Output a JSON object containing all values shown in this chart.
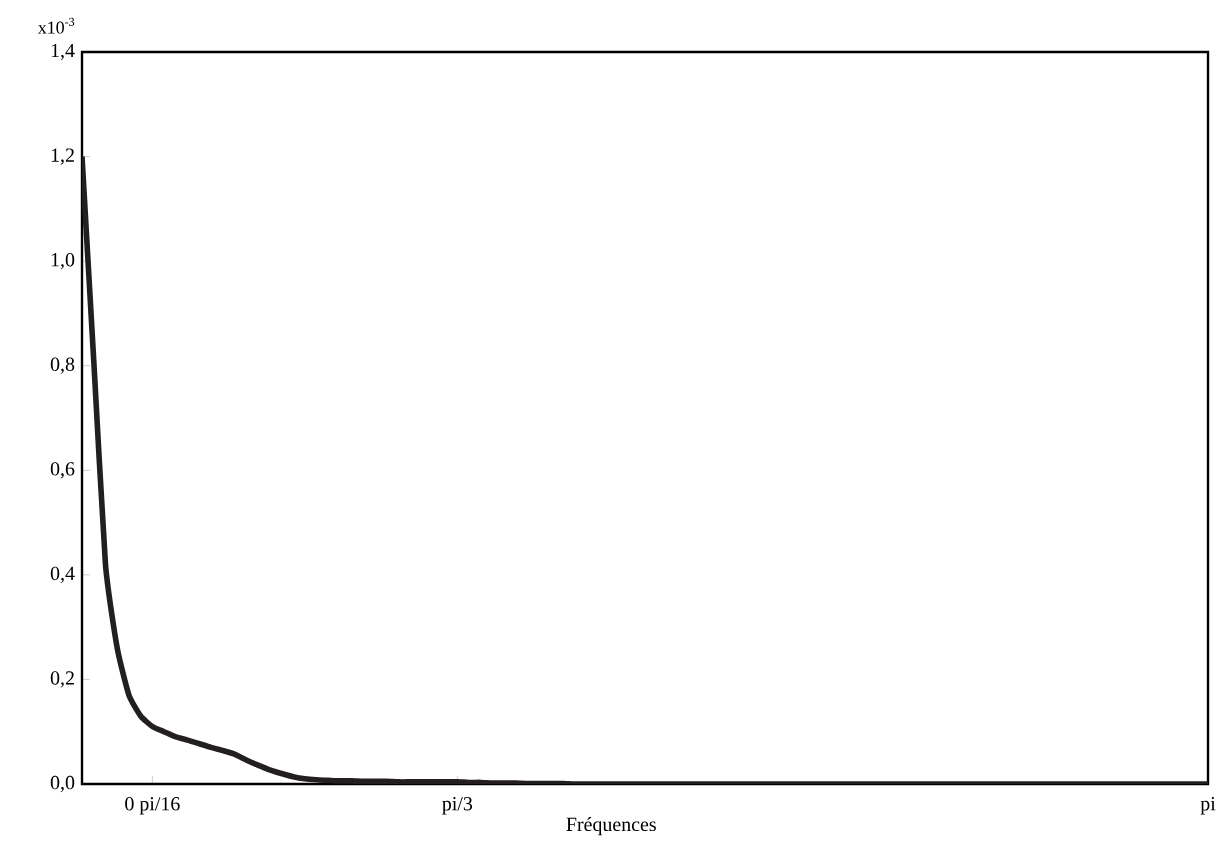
{
  "chart_data": {
    "type": "line",
    "xlabel": "Fréquences",
    "annotations": [
      "x10$^{-3}$"
    ],
    "categories": [
      null,
      null,
      null,
      null,
      null,
      null,
      "0 pi/16",
      null,
      null,
      null,
      null,
      null,
      null,
      null,
      null,
      null,
      null,
      null,
      null,
      null,
      null,
      null,
      null,
      null,
      null,
      null,
      null,
      null,
      null,
      null,
      null,
      null,
      "pi/3",
      null,
      null,
      null,
      null,
      null,
      null,
      null,
      null,
      null,
      null,
      null,
      null,
      null,
      null,
      null,
      null,
      null,
      null,
      null,
      null,
      null,
      null,
      null,
      null,
      null,
      null,
      null,
      null,
      null,
      null,
      null,
      null,
      null,
      null,
      null,
      null,
      null,
      null,
      null,
      null,
      null,
      null,
      null,
      null,
      null,
      null,
      null,
      null,
      null,
      null,
      null,
      null,
      null,
      null,
      null,
      null,
      null,
      null,
      null,
      null,
      null,
      null,
      null,
      "pi"
    ],
    "values": [
      1.2,
      0.81,
      0.42,
      0.26,
      0.17,
      0.13,
      0.11,
      0.1,
      0.09,
      0.084,
      0.077,
      0.07,
      0.064,
      0.057,
      0.046,
      0.036,
      0.027,
      0.02,
      0.014,
      0.01,
      0.008,
      0.007,
      0.006,
      0.006,
      0.005,
      0.005,
      0.005,
      0.004,
      0.004,
      0.004,
      0.004,
      0.004,
      0.004,
      0.003,
      0.003,
      0.002,
      0.002,
      0.002,
      0.001,
      0.001,
      0.001,
      0.001,
      0,
      0,
      0,
      0,
      0,
      0,
      0,
      0,
      0,
      0,
      0,
      0,
      0,
      0,
      0,
      0,
      0,
      0,
      0,
      0,
      0,
      0,
      0,
      0,
      0,
      0,
      0,
      0,
      0,
      0,
      0,
      0,
      0,
      0,
      0,
      0,
      0,
      0,
      0,
      0,
      0,
      0,
      0,
      0,
      0,
      0,
      0,
      0,
      0,
      0,
      0,
      0,
      0,
      0,
      0
    ],
    "color": "#231f20",
    "ylim": [
      0,
      1.4
    ],
    "yticks": [
      {
        "value": 0,
        "label": "0,0"
      },
      {
        "value": 0.2,
        "label": "0,2"
      },
      {
        "value": 0.4,
        "label": "0,4"
      },
      {
        "value": 0.6,
        "label": "0,6"
      },
      {
        "value": 0.8,
        "label": "0,8"
      },
      {
        "value": 1.0,
        "label": "1,0"
      },
      {
        "value": 1.2,
        "label": "1,2"
      },
      {
        "value": 1.4,
        "label": "1,4"
      }
    ]
  }
}
